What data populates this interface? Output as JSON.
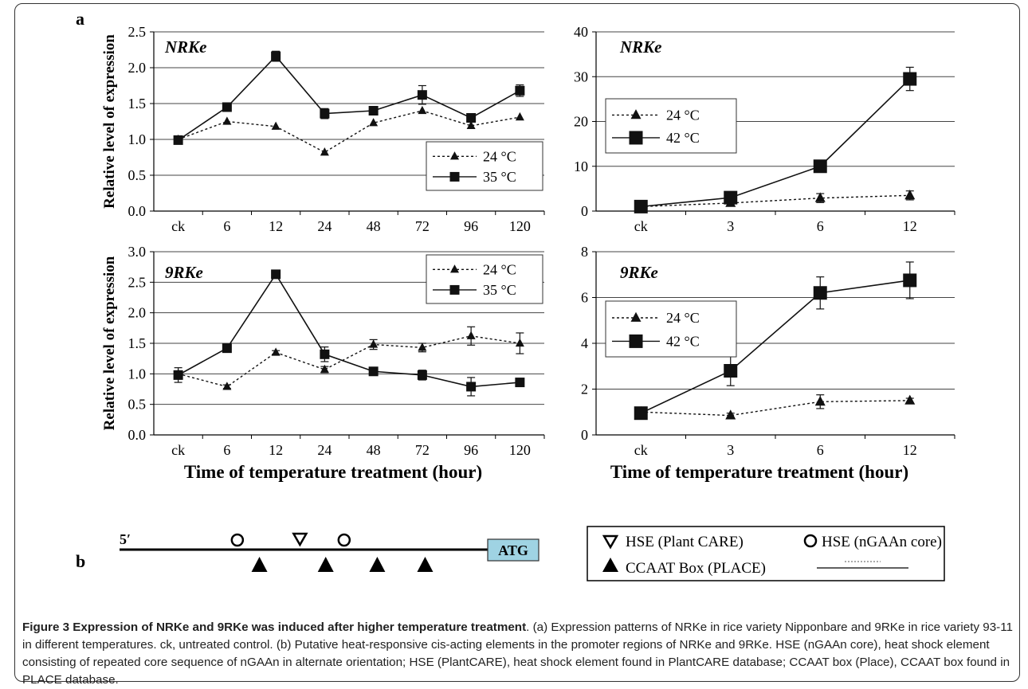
{
  "panel_labels": {
    "a": "a",
    "b": "b"
  },
  "chart_data": [
    {
      "type": "line",
      "title": "NRKe",
      "ylabel": "Relative level of expression",
      "xlabel": "",
      "categories": [
        "ck",
        "6",
        "12",
        "24",
        "48",
        "72",
        "96",
        "120"
      ],
      "ylim": [
        0,
        2.5
      ],
      "yticks": [
        "0.0",
        "0.5",
        "1.0",
        "1.5",
        "2.0",
        "2.5"
      ],
      "grid": "horizontal",
      "legend_position": "lower-right",
      "series": [
        {
          "name": "24 °C",
          "marker": "triangle",
          "line": "dotted",
          "values": [
            1.0,
            1.25,
            1.18,
            0.82,
            1.23,
            1.4,
            1.19,
            1.31
          ]
        },
        {
          "name": "35 °C",
          "marker": "square",
          "line": "solid",
          "values": [
            0.99,
            1.45,
            2.16,
            1.36,
            1.4,
            1.62,
            1.3,
            1.68
          ],
          "errors": [
            0.03,
            0.03,
            0.07,
            0.07,
            0.03,
            0.13,
            0.05,
            0.08
          ]
        }
      ]
    },
    {
      "type": "line",
      "title": "NRKe",
      "ylabel": "",
      "xlabel": "",
      "categories": [
        "ck",
        "3",
        "6",
        "12"
      ],
      "ylim": [
        0,
        40
      ],
      "yticks": [
        "0",
        "10",
        "20",
        "30",
        "40"
      ],
      "grid": "horizontal",
      "legend_position": "upper-left",
      "series": [
        {
          "name": "24 °C",
          "marker": "triangle",
          "line": "dotted",
          "values": [
            1.0,
            1.8,
            2.9,
            3.5
          ],
          "errors": [
            0,
            0.6,
            1.0,
            1.0
          ]
        },
        {
          "name": "42 °C",
          "marker": "square",
          "line": "solid",
          "values": [
            1.0,
            3.0,
            10.0,
            29.5
          ],
          "errors": [
            0,
            0.7,
            0.8,
            2.6
          ]
        }
      ]
    },
    {
      "type": "line",
      "title": "9RKe",
      "ylabel": "Relative level of expression",
      "xlabel": "Time of temperature treatment (hour)",
      "categories": [
        "ck",
        "6",
        "12",
        "24",
        "48",
        "72",
        "96",
        "120"
      ],
      "ylim": [
        0,
        3.0
      ],
      "yticks": [
        "0.0",
        "0.5",
        "1.0",
        "1.5",
        "2.0",
        "2.5",
        "3.0"
      ],
      "grid": "horizontal",
      "legend_position": "upper-right",
      "series": [
        {
          "name": "24 °C",
          "marker": "triangle",
          "line": "dotted",
          "values": [
            1.0,
            0.79,
            1.35,
            1.07,
            1.48,
            1.43,
            1.62,
            1.5
          ],
          "errors": [
            0.05,
            0.03,
            0.03,
            0.05,
            0.08,
            0.07,
            0.15,
            0.17
          ]
        },
        {
          "name": "35 °C",
          "marker": "square",
          "line": "solid",
          "values": [
            0.98,
            1.42,
            2.63,
            1.32,
            1.04,
            0.98,
            0.79,
            0.86
          ],
          "errors": [
            0.12,
            0.05,
            0.05,
            0.12,
            0.03,
            0.08,
            0.15,
            0.03
          ]
        }
      ]
    },
    {
      "type": "line",
      "title": "9RKe",
      "ylabel": "",
      "xlabel": "Time of temperature treatment (hour)",
      "categories": [
        "ck",
        "3",
        "6",
        "12"
      ],
      "ylim": [
        0,
        8
      ],
      "yticks": [
        "0",
        "2",
        "4",
        "6",
        "8"
      ],
      "grid": "horizontal",
      "legend_position": "middle-left",
      "series": [
        {
          "name": "24 °C",
          "marker": "triangle",
          "line": "dotted",
          "values": [
            1.0,
            0.85,
            1.45,
            1.5
          ],
          "errors": [
            0,
            0.1,
            0.3,
            0.1
          ]
        },
        {
          "name": "42 °C",
          "marker": "square",
          "line": "solid",
          "values": [
            0.95,
            2.8,
            6.2,
            6.75
          ],
          "errors": [
            0,
            0.65,
            0.7,
            0.8
          ]
        }
      ]
    }
  ],
  "promoter": {
    "five_prime_label": "5′",
    "atg_label": "ATG",
    "length": 100,
    "hse_plantcare_positions": [
      49
    ],
    "hse_ngaan_positions": [
      32,
      61
    ],
    "ccaat_positions": [
      38,
      56,
      70,
      83
    ],
    "legend": {
      "hse_plantcare": "HSE (Plant CARE)",
      "hse_ngaan": "HSE (nGAAn core)",
      "ccaat": "CCAAT Box (PLACE)"
    },
    "colors": {
      "atg_fill": "#9fd3e3",
      "atg_border": "#333333"
    }
  },
  "caption": {
    "lead": "Figure 3 Expression of NRKe and 9RKe was induced after higher temperature treatment",
    "body": ". (a) Expression patterns of NRKe in rice variety Nipponbare and 9RKe in rice variety 93-11 in different temperatures. ck, untreated control. (b) Putative heat-responsive cis-acting elements in the promoter regions of NRKe and 9RKe. HSE (nGAAn core), heat shock element consisting of repeated core sequence of nGAAn in alternate orientation; HSE (PlantCARE), heat shock element found in PlantCARE database; CCAAT box (Place), CCAAT box found in PLACE database."
  }
}
